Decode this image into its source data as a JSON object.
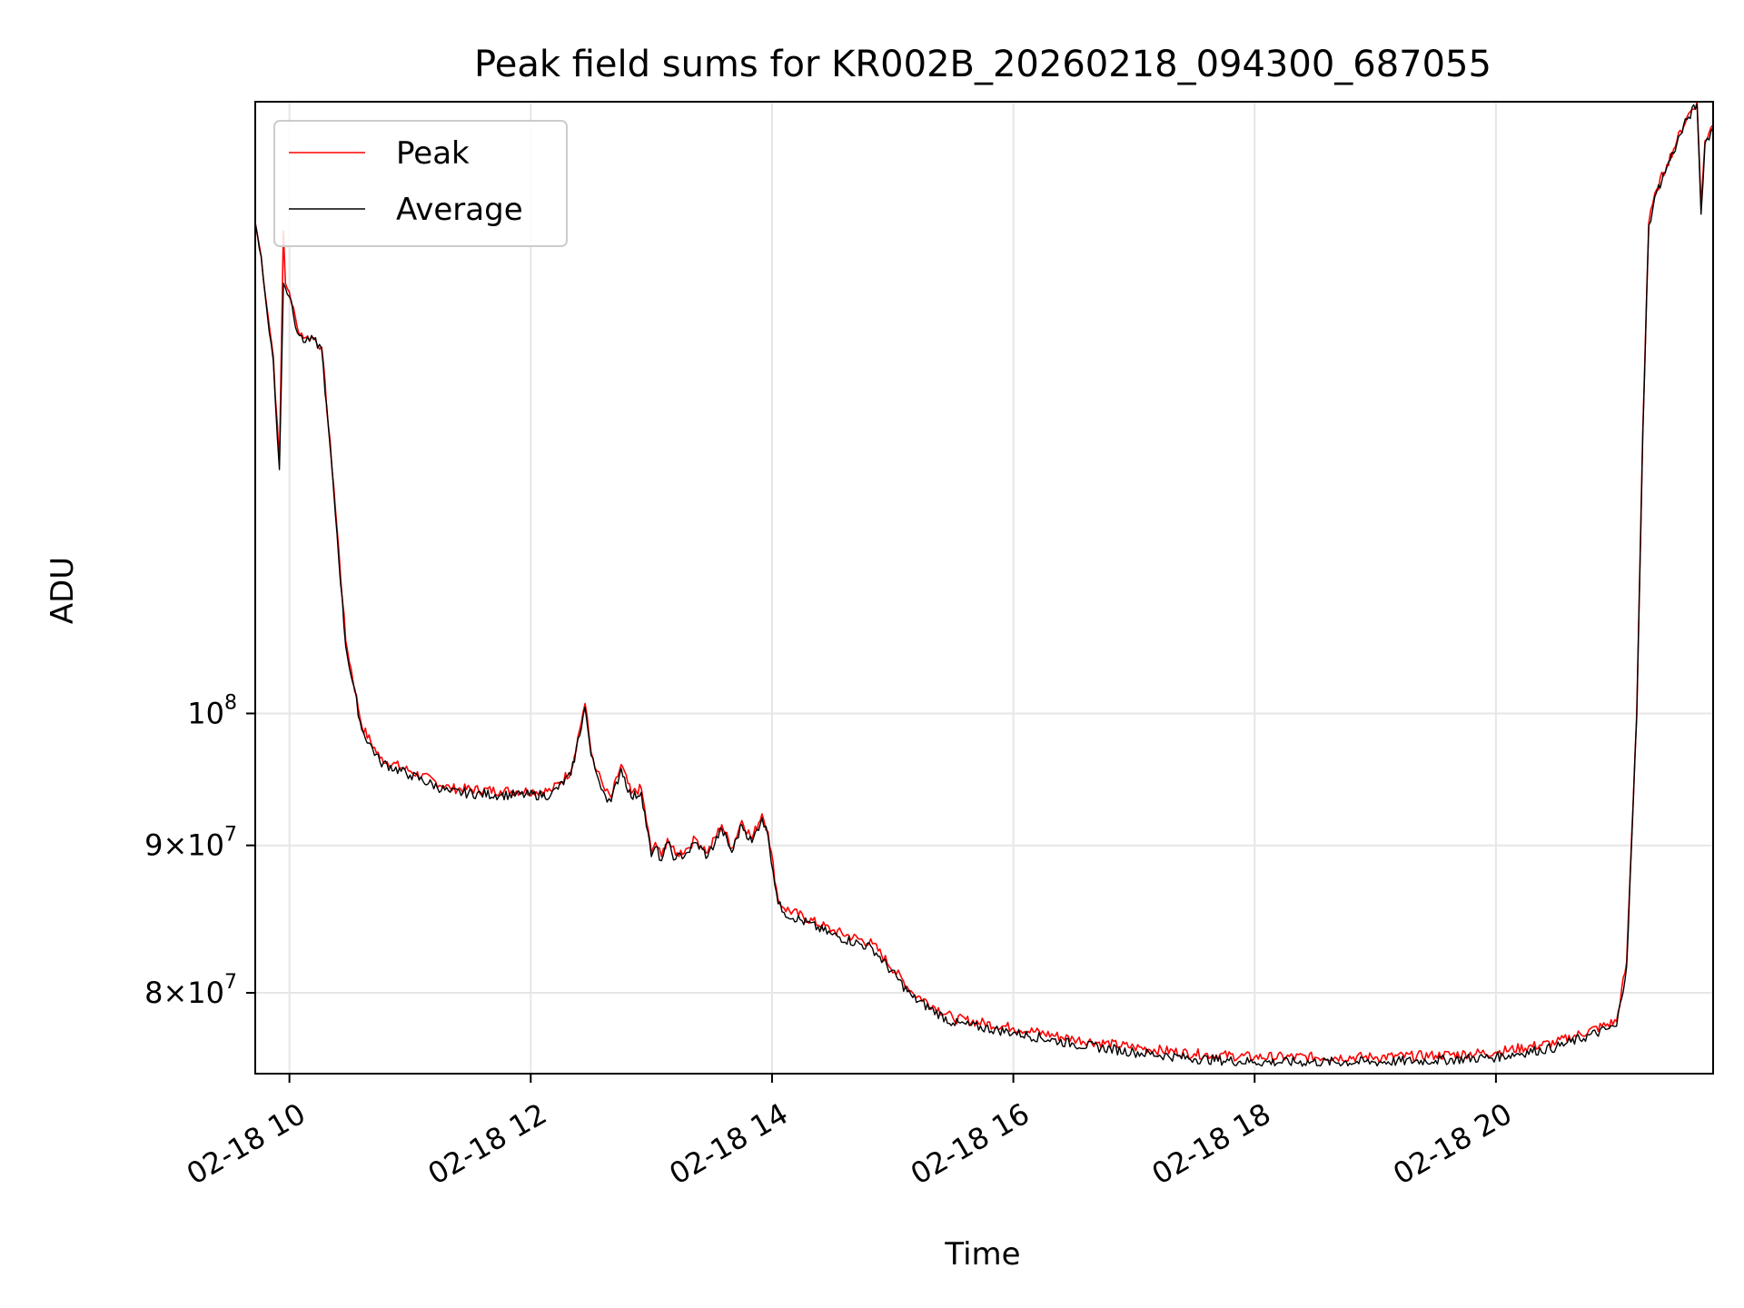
{
  "chart_data": {
    "type": "line",
    "title": "Peak field sums for KR002B_20260218_094300_687055",
    "xlabel": "Time",
    "ylabel": "ADU",
    "yscale": "log",
    "xlim": [
      "02-18 09:43",
      "02-18 21:48"
    ],
    "ylim": [
      75000000,
      163000000
    ],
    "grid": true,
    "legend_position": "top-left",
    "x_ticks": [
      "02-18 10",
      "02-18 12",
      "02-18 14",
      "02-18 16",
      "02-18 18",
      "02-18 20"
    ],
    "y_ticks": [
      {
        "value": 80000000,
        "mantissa": "8",
        "base": "10",
        "exp": "7"
      },
      {
        "value": 90000000,
        "mantissa": "9",
        "base": "10",
        "exp": "7"
      },
      {
        "value": 100000000,
        "mantissa": "",
        "base": "10",
        "exp": "8"
      }
    ],
    "series": [
      {
        "name": "Peak",
        "color": "#ff0000",
        "x": [
          "02-18 09:43",
          "02-18 09:46",
          "02-18 09:49",
          "02-18 09:52",
          "02-18 09:55",
          "02-18 09:57",
          "02-18 09:58",
          "02-18 10:00",
          "02-18 10:04",
          "02-18 10:08",
          "02-18 10:12",
          "02-18 10:16",
          "02-18 10:22",
          "02-18 10:28",
          "02-18 10:36",
          "02-18 10:45",
          "02-18 11:00",
          "02-18 11:20",
          "02-18 11:45",
          "02-18 12:10",
          "02-18 12:20",
          "02-18 12:27",
          "02-18 12:30",
          "02-18 12:33",
          "02-18 12:37",
          "02-18 12:40",
          "02-18 12:45",
          "02-18 12:50",
          "02-18 12:55",
          "02-18 13:00",
          "02-18 13:02",
          "02-18 13:05",
          "02-18 13:08",
          "02-18 13:12",
          "02-18 13:18",
          "02-18 13:22",
          "02-18 13:28",
          "02-18 13:35",
          "02-18 13:40",
          "02-18 13:45",
          "02-18 13:50",
          "02-18 13:55",
          "02-18 13:58",
          "02-18 14:03",
          "02-18 14:06",
          "02-18 14:30",
          "02-18 14:50",
          "02-18 15:10",
          "02-18 15:30",
          "02-18 16:00",
          "02-18 16:30",
          "02-18 17:00",
          "02-18 17:30",
          "02-18 18:00",
          "02-18 19:00",
          "02-18 19:30",
          "02-18 20:00",
          "02-18 20:30",
          "02-18 21:00",
          "02-18 21:05",
          "02-18 21:10",
          "02-18 21:13",
          "02-18 21:16",
          "02-18 21:20",
          "02-18 21:25",
          "02-18 21:30",
          "02-18 21:35",
          "02-18 21:40",
          "02-18 21:42",
          "02-18 21:44",
          "02-18 21:48"
        ],
        "y": [
          148000000,
          144000000,
          138000000,
          133000000,
          122000000,
          147000000,
          141000000,
          140000000,
          136000000,
          135000000,
          135000000,
          134000000,
          120000000,
          106000000,
          99000000,
          96500000,
          95500000,
          94200000,
          94000000,
          94000000,
          95500000,
          100800000,
          97000000,
          95500000,
          94000000,
          93500000,
          96000000,
          93800000,
          94200000,
          89500000,
          90200000,
          89200000,
          90500000,
          89300000,
          89800000,
          90500000,
          89500000,
          91500000,
          89800000,
          91800000,
          90500000,
          92300000,
          91000000,
          86200000,
          85600000,
          84100000,
          83200000,
          80000000,
          78400000,
          77800000,
          77100000,
          76600000,
          76200000,
          76000000,
          76000000,
          76100000,
          76300000,
          76900000,
          78200000,
          82000000,
          100000000,
          125000000,
          148000000,
          152000000,
          155000000,
          158000000,
          161000000,
          163000000,
          150000000,
          158000000,
          160000000
        ]
      },
      {
        "name": "Average",
        "color": "#000000",
        "x": [
          "02-18 09:43",
          "02-18 09:46",
          "02-18 09:49",
          "02-18 09:52",
          "02-18 09:55",
          "02-18 09:57",
          "02-18 09:58",
          "02-18 10:00",
          "02-18 10:04",
          "02-18 10:08",
          "02-18 10:12",
          "02-18 10:16",
          "02-18 10:22",
          "02-18 10:28",
          "02-18 10:36",
          "02-18 10:45",
          "02-18 11:00",
          "02-18 11:20",
          "02-18 11:45",
          "02-18 12:10",
          "02-18 12:20",
          "02-18 12:27",
          "02-18 12:30",
          "02-18 12:33",
          "02-18 12:37",
          "02-18 12:40",
          "02-18 12:45",
          "02-18 12:50",
          "02-18 12:55",
          "02-18 13:00",
          "02-18 13:02",
          "02-18 13:05",
          "02-18 13:08",
          "02-18 13:12",
          "02-18 13:18",
          "02-18 13:22",
          "02-18 13:28",
          "02-18 13:35",
          "02-18 13:40",
          "02-18 13:45",
          "02-18 13:50",
          "02-18 13:55",
          "02-18 13:58",
          "02-18 14:03",
          "02-18 14:06",
          "02-18 14:30",
          "02-18 14:50",
          "02-18 15:10",
          "02-18 15:30",
          "02-18 16:00",
          "02-18 16:30",
          "02-18 17:00",
          "02-18 17:30",
          "02-18 18:00",
          "02-18 19:00",
          "02-18 19:30",
          "02-18 20:00",
          "02-18 20:30",
          "02-18 21:00",
          "02-18 21:05",
          "02-18 21:10",
          "02-18 21:13",
          "02-18 21:16",
          "02-18 21:20",
          "02-18 21:25",
          "02-18 21:30",
          "02-18 21:35",
          "02-18 21:40",
          "02-18 21:42",
          "02-18 21:44",
          "02-18 21:48"
        ],
        "y": [
          148000000,
          144000000,
          137500000,
          132500000,
          121500000,
          141000000,
          140500000,
          139500000,
          135500000,
          134500000,
          134800000,
          133800000,
          119500000,
          105500000,
          98700000,
          96200000,
          95200000,
          93900000,
          93700000,
          93700000,
          95200000,
          100500000,
          96700000,
          95200000,
          93700000,
          93200000,
          95700000,
          93500000,
          93900000,
          89200000,
          89900000,
          88900000,
          90200000,
          89000000,
          89500000,
          90200000,
          89200000,
          91200000,
          89500000,
          91500000,
          90200000,
          92000000,
          90700000,
          85900000,
          85300000,
          83800000,
          82900000,
          79700000,
          78100000,
          77500000,
          76800000,
          76300000,
          75900000,
          75700000,
          75700000,
          75800000,
          76000000,
          76600000,
          77900000,
          81700000,
          99700000,
          124700000,
          147700000,
          151700000,
          154700000,
          157700000,
          160700000,
          162700000,
          149000000,
          157700000,
          159700000
        ]
      }
    ]
  }
}
